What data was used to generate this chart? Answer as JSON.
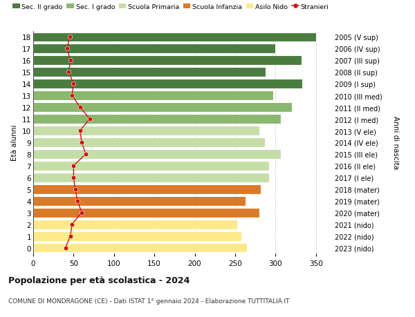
{
  "ages": [
    0,
    1,
    2,
    3,
    4,
    5,
    6,
    7,
    8,
    9,
    10,
    11,
    12,
    13,
    14,
    15,
    16,
    17,
    18
  ],
  "right_labels": [
    "2023 (nido)",
    "2022 (nido)",
    "2021 (nido)",
    "2020 (mater)",
    "2019 (mater)",
    "2018 (mater)",
    "2017 (I ele)",
    "2016 (II ele)",
    "2015 (III ele)",
    "2014 (IV ele)",
    "2013 (V ele)",
    "2012 (I med)",
    "2011 (II med)",
    "2010 (III med)",
    "2009 (I sup)",
    "2008 (II sup)",
    "2007 (III sup)",
    "2006 (IV sup)",
    "2005 (V sup)"
  ],
  "bar_values": [
    265,
    258,
    253,
    280,
    263,
    282,
    292,
    292,
    307,
    287,
    280,
    307,
    320,
    297,
    333,
    288,
    332,
    300,
    350
  ],
  "stranieri_values": [
    40,
    46,
    48,
    60,
    55,
    52,
    50,
    50,
    65,
    60,
    58,
    70,
    58,
    48,
    50,
    44,
    46,
    42,
    45
  ],
  "bar_color_list": [
    "#fce989",
    "#fce989",
    "#fce989",
    "#d97a2a",
    "#d97a2a",
    "#d97a2a",
    "#c5dea8",
    "#c5dea8",
    "#c5dea8",
    "#c5dea8",
    "#c5dea8",
    "#8ab86e",
    "#8ab86e",
    "#8ab86e",
    "#4a7c3f",
    "#4a7c3f",
    "#4a7c3f",
    "#4a7c3f",
    "#4a7c3f"
  ],
  "stranieri_color": "#cc1111",
  "title_main": "Popolazione per età scolastica - 2024",
  "title_sub": "COMUNE DI MONDRAGONE (CE) - Dati ISTAT 1° gennaio 2024 - Elaborazione TUTTITALIA.IT",
  "ylabel_left": "Età alunni",
  "ylabel_right": "Anni di nascita",
  "xlim": [
    0,
    370
  ],
  "xticks": [
    0,
    50,
    100,
    150,
    200,
    250,
    300,
    350
  ],
  "background_color": "#ffffff",
  "grid_color": "#cccccc",
  "legend_items": [
    {
      "label": "Sec. II grado",
      "color": "#4a7c3f"
    },
    {
      "label": "Sec. I grado",
      "color": "#8ab86e"
    },
    {
      "label": "Scuola Primaria",
      "color": "#c5dea8"
    },
    {
      "label": "Scuola Infanzia",
      "color": "#d97a2a"
    },
    {
      "label": "Asilo Nido",
      "color": "#fce989"
    },
    {
      "label": "Stranieri",
      "color": "#cc1111"
    }
  ]
}
